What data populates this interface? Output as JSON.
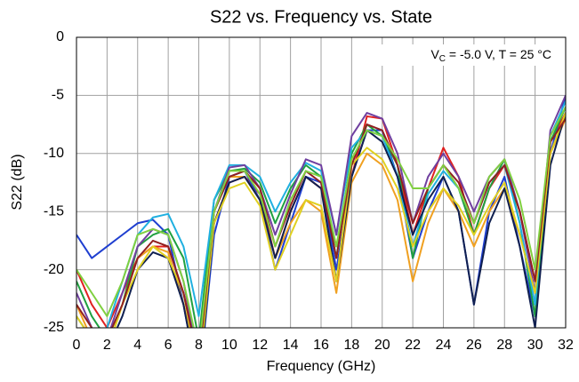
{
  "chart_data": {
    "type": "line",
    "title": "S22 vs. Frequency vs. State",
    "annotation": {
      "text": "V",
      "sub": "C",
      "rest": " = -5.0 V, T = 25 °C"
    },
    "xlabel": "Frequency (GHz)",
    "ylabel": "S22 (dB)",
    "xlim": [
      0,
      32
    ],
    "ylim": [
      -25,
      0
    ],
    "xticks": [
      0,
      2,
      4,
      6,
      8,
      10,
      12,
      14,
      16,
      18,
      20,
      22,
      24,
      26,
      28,
      30,
      32
    ],
    "yticks": [
      0,
      -5,
      -10,
      -15,
      -20,
      -25
    ],
    "grid": true,
    "x": [
      0,
      1,
      2,
      3,
      4,
      5,
      6,
      7,
      8,
      9,
      10,
      11,
      12,
      13,
      14,
      15,
      16,
      17,
      18,
      19,
      20,
      21,
      22,
      23,
      24,
      25,
      26,
      27,
      28,
      29,
      30,
      31,
      32
    ],
    "series": [
      {
        "color": "#e02020",
        "values": [
          -20,
          -23,
          -25,
          -22,
          -19,
          -18,
          -18,
          -22,
          -28,
          -16,
          -12.5,
          -12,
          -13.5,
          -19,
          -15,
          -12,
          -13,
          -18,
          -12,
          -6.8,
          -7,
          -11,
          -17,
          -13,
          -9.5,
          -12,
          -17,
          -13,
          -11,
          -15,
          -21,
          -9,
          -6.5
        ]
      },
      {
        "color": "#1f3fd0",
        "values": [
          -17,
          -19,
          -18,
          -17,
          -16,
          -15.7,
          -17,
          -23,
          -30,
          -17,
          -12,
          -11.5,
          -14,
          -20,
          -16,
          -12,
          -12.5,
          -20,
          -12,
          -8,
          -8,
          -12,
          -19,
          -15,
          -12,
          -15,
          -23,
          -15,
          -12,
          -18,
          -24,
          -10,
          -5
        ]
      },
      {
        "color": "#20a040",
        "values": [
          -21,
          -24,
          -26,
          -23,
          -18,
          -17,
          -16.5,
          -19,
          -26,
          -14,
          -11.5,
          -11.3,
          -12.5,
          -16,
          -13,
          -11,
          -12,
          -19,
          -10,
          -7.5,
          -8.5,
          -11,
          -19,
          -13,
          -11,
          -13,
          -17,
          -13,
          -10.5,
          -16,
          -24,
          -9,
          -6
        ]
      },
      {
        "color": "#f0a020",
        "values": [
          -23,
          -26,
          -27,
          -23,
          -19,
          -18,
          -18.5,
          -23,
          -29,
          -15,
          -12,
          -12,
          -14,
          -19,
          -16,
          -14,
          -15,
          -22,
          -12.5,
          -10,
          -11,
          -14,
          -21,
          -16,
          -13,
          -15,
          -18,
          -15,
          -13,
          -17,
          -22,
          -10,
          -7
        ]
      },
      {
        "color": "#20b0e0",
        "values": [
          -24,
          -26,
          -25,
          -21,
          -17,
          -15.5,
          -15.2,
          -18,
          -24,
          -14,
          -11,
          -11,
          -12,
          -15,
          -12.5,
          -10.8,
          -11.5,
          -17,
          -9.5,
          -8,
          -8.5,
          -12,
          -18,
          -13.5,
          -11.5,
          -13,
          -16,
          -12.5,
          -11,
          -16,
          -23,
          -8.5,
          -5.5
        ]
      },
      {
        "color": "#7040a0",
        "values": [
          -22,
          -25,
          -26,
          -22,
          -18,
          -16.5,
          -17,
          -21,
          -28,
          -15,
          -11.2,
          -11,
          -13,
          -17,
          -13.5,
          -10.5,
          -11,
          -17,
          -8.5,
          -6.5,
          -7,
          -10,
          -16,
          -12,
          -10,
          -12,
          -15,
          -12,
          -10.5,
          -15,
          -22,
          -8,
          -5
        ]
      },
      {
        "color": "#102050",
        "values": [
          -25,
          -27,
          -27,
          -24,
          -20,
          -18.5,
          -19,
          -23,
          -30,
          -16,
          -12.5,
          -12,
          -14,
          -19,
          -15,
          -12,
          -13,
          -21,
          -12,
          -8,
          -9,
          -12,
          -17,
          -14,
          -12,
          -15,
          -23,
          -16,
          -13,
          -18,
          -25,
          -11,
          -6.5
        ]
      },
      {
        "color": "#e0d020",
        "values": [
          -24,
          -26,
          -27,
          -23,
          -20,
          -18,
          -19,
          -22,
          -29,
          -16,
          -13,
          -12.5,
          -14.5,
          -20,
          -17,
          -14,
          -14.5,
          -21,
          -11,
          -9.5,
          -10.5,
          -13,
          -18,
          -15,
          -13,
          -14.5,
          -17,
          -14.5,
          -12.5,
          -17,
          -22,
          -10,
          -6.5
        ]
      },
      {
        "color": "#902020",
        "values": [
          -23,
          -25,
          -26,
          -23,
          -19,
          -17.5,
          -18,
          -22,
          -28,
          -15,
          -12,
          -11.5,
          -13,
          -18,
          -14.5,
          -11.5,
          -12.5,
          -19,
          -11,
          -7.5,
          -8,
          -11,
          -16,
          -13,
          -11,
          -12.5,
          -16,
          -12.5,
          -11,
          -15,
          -21,
          -9,
          -7
        ]
      },
      {
        "color": "#80d040",
        "values": [
          -20,
          -22,
          -24,
          -21,
          -17,
          -16.5,
          -17,
          -21,
          -27,
          -15,
          -11.5,
          -11.5,
          -13.5,
          -18,
          -14,
          -11.5,
          -12,
          -18,
          -10.5,
          -8,
          -8.5,
          -10.5,
          -13,
          -13,
          -11,
          -13,
          -16,
          -12,
          -10.5,
          -14,
          -20,
          -8.5,
          -6
        ]
      }
    ]
  }
}
